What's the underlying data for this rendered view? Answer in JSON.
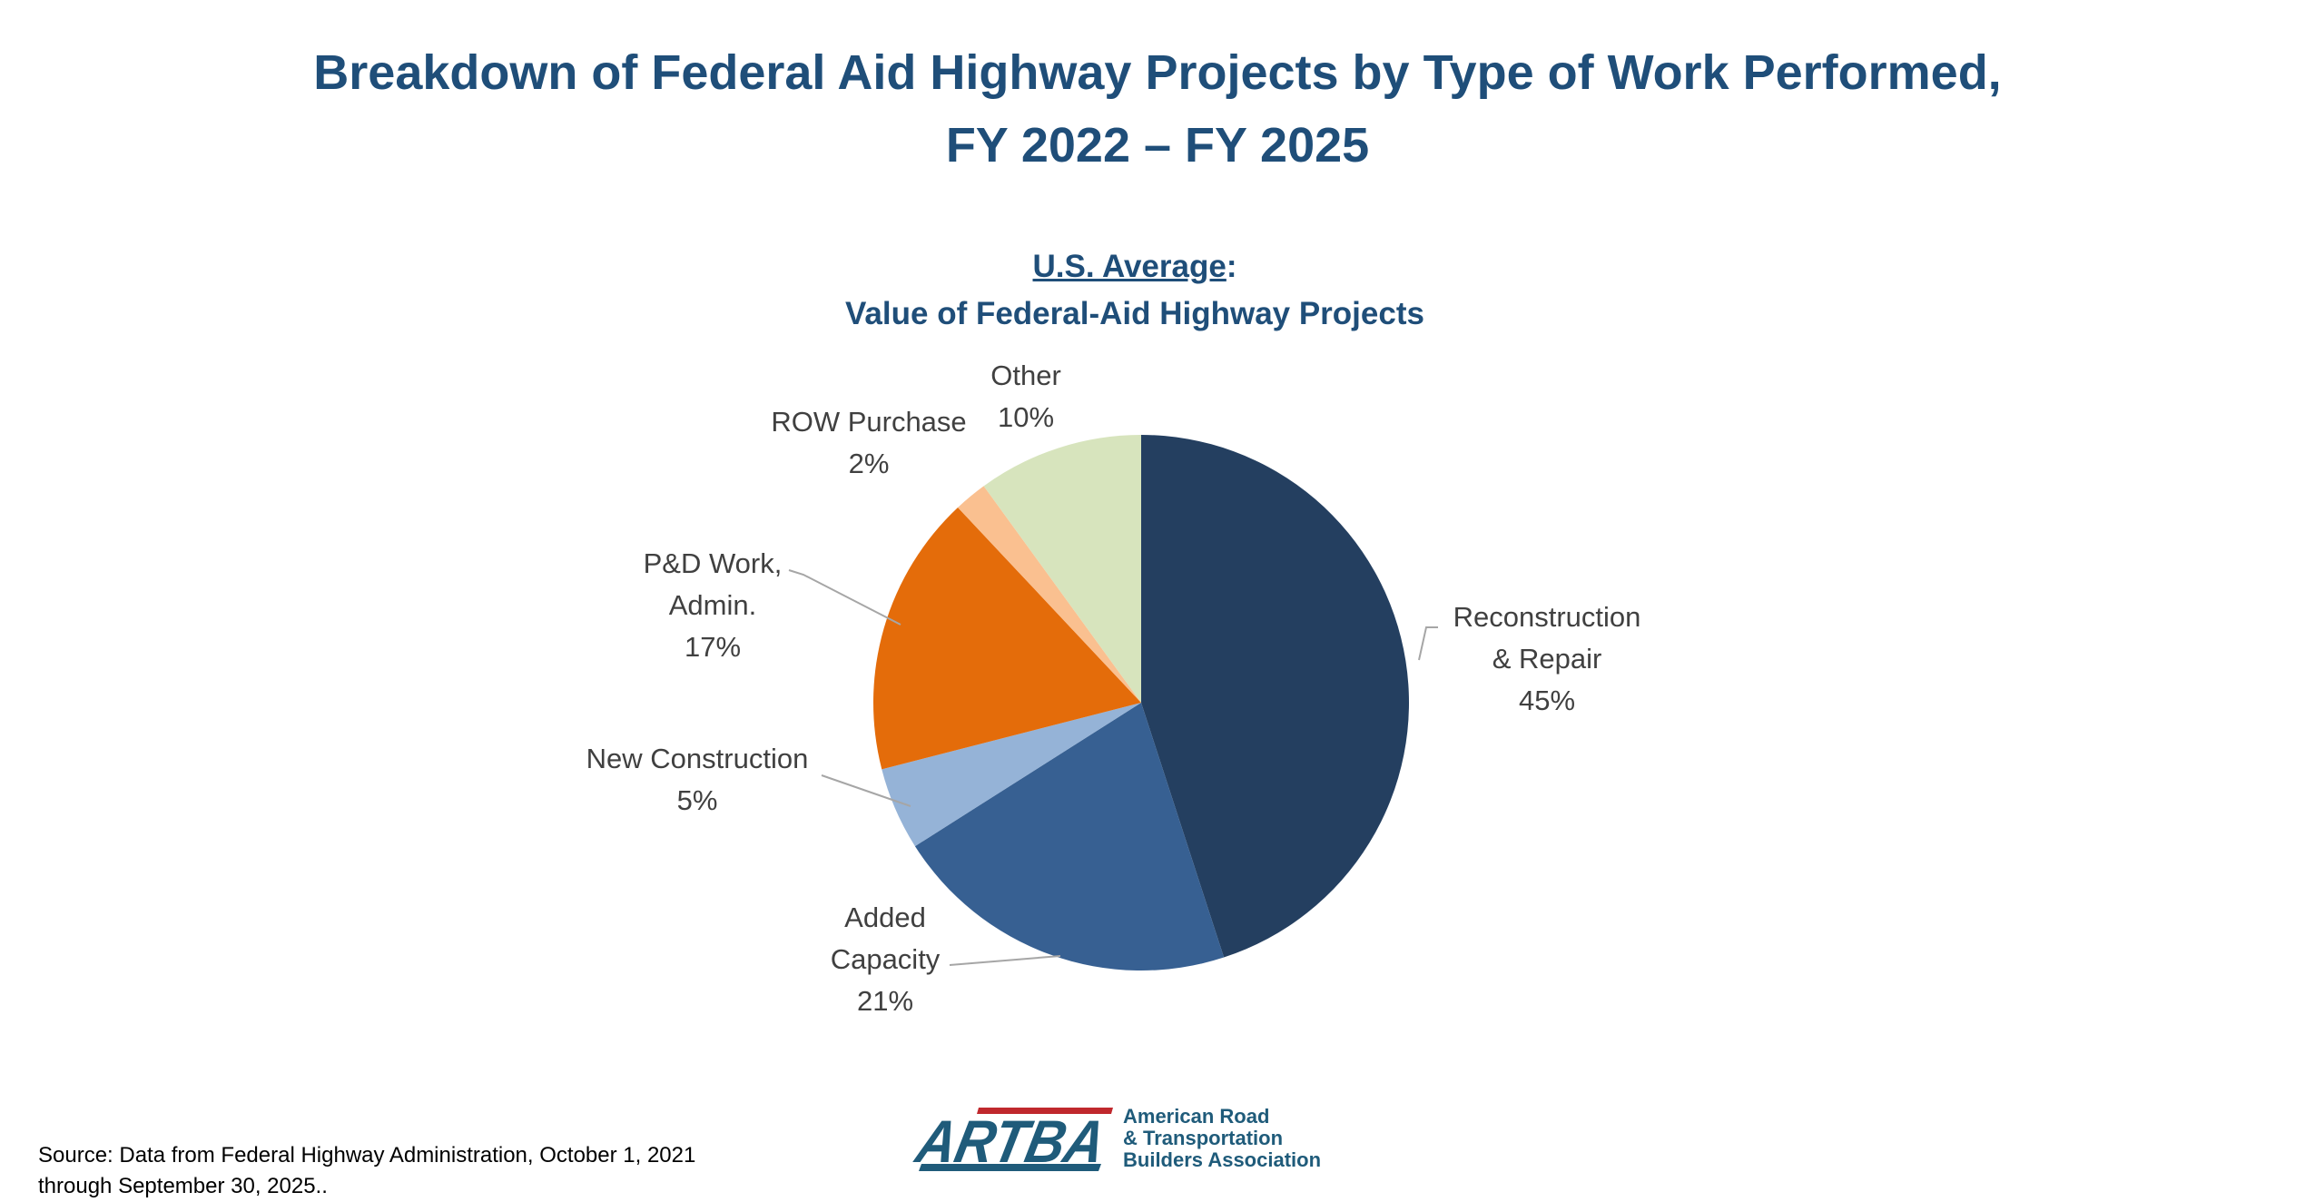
{
  "header": {
    "title_line1": "Breakdown of Federal Aid Highway Projects by Type of Work Performed,",
    "title_line2": "FY 2022 – FY 2025"
  },
  "chart_data": {
    "type": "pie",
    "title_underlined": "U.S. Average",
    "title_suffix": ":",
    "subtitle": "Value of Federal-Aid Highway Projects",
    "unit": "%",
    "slices": [
      {
        "label": "Reconstruction & Repair",
        "label_lines": [
          "Reconstruction",
          "& Repair"
        ],
        "value": 45,
        "value_label": "45%",
        "color": "#243F60"
      },
      {
        "label": "Added Capacity",
        "label_lines": [
          "Added",
          "Capacity"
        ],
        "value": 21,
        "value_label": "21%",
        "color": "#376092"
      },
      {
        "label": "New Construction",
        "label_lines": [
          "New Construction"
        ],
        "value": 5,
        "value_label": "5%",
        "color": "#95B3D7"
      },
      {
        "label": "P&D Work, Admin.",
        "label_lines": [
          "P&D Work,",
          "Admin."
        ],
        "value": 17,
        "value_label": "17%",
        "color": "#E46C0A"
      },
      {
        "label": "ROW Purchase",
        "label_lines": [
          "ROW Purchase"
        ],
        "value": 2,
        "value_label": "2%",
        "color": "#FAC090"
      },
      {
        "label": "Other",
        "label_lines": [
          "Other"
        ],
        "value": 10,
        "value_label": "10%",
        "color": "#D7E4BD"
      }
    ]
  },
  "footer": {
    "source_line1": "Source: Data from Federal Highway Administration, October 1, 2021",
    "source_line2": "through September 30, 2025..",
    "logo": {
      "mark": "ARTBA",
      "name_line1": "American Road",
      "name_line2": "& Transportation",
      "name_line3": "Builders Association",
      "blue": "#1F5B7A",
      "red": "#C0282D"
    }
  }
}
